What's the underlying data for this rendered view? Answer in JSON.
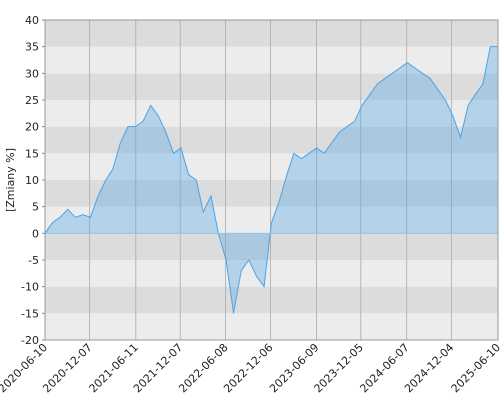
{
  "chart_data": {
    "type": "area",
    "y_label": "[Zmiany %]",
    "x": [
      "2020-06-10",
      "2020-07-10",
      "2020-08-10",
      "2020-09-10",
      "2020-10-10",
      "2020-11-10",
      "2020-12-10",
      "2021-01-10",
      "2021-02-10",
      "2021-03-10",
      "2021-04-10",
      "2021-05-10",
      "2021-06-10",
      "2021-07-10",
      "2021-08-10",
      "2021-09-10",
      "2021-10-10",
      "2021-11-10",
      "2021-12-10",
      "2022-01-10",
      "2022-02-10",
      "2022-03-10",
      "2022-04-10",
      "2022-05-10",
      "2022-06-10",
      "2022-07-10",
      "2022-08-10",
      "2022-09-10",
      "2022-10-10",
      "2022-11-10",
      "2022-12-10",
      "2023-01-10",
      "2023-02-10",
      "2023-03-10",
      "2023-04-10",
      "2023-05-10",
      "2023-06-10",
      "2023-07-10",
      "2023-08-10",
      "2023-09-10",
      "2023-10-10",
      "2023-11-10",
      "2023-12-10",
      "2024-01-10",
      "2024-02-10",
      "2024-03-10",
      "2024-04-10",
      "2024-05-10",
      "2024-06-10",
      "2024-07-10",
      "2024-08-10",
      "2024-09-10",
      "2024-10-10",
      "2024-11-10",
      "2024-12-10",
      "2025-01-10",
      "2025-02-10",
      "2025-03-10",
      "2025-04-10",
      "2025-05-10",
      "2025-06-10"
    ],
    "series": [
      {
        "name": "Zmiany",
        "color": "#4da3e6",
        "values": [
          0,
          2,
          3,
          4.5,
          3,
          3.5,
          3,
          7,
          10,
          12,
          17,
          20,
          20,
          21,
          24,
          22,
          19,
          15,
          16,
          11,
          10,
          4,
          7,
          0,
          -5,
          -15,
          -7,
          -5,
          -8,
          -10,
          2,
          6,
          11,
          15,
          14,
          15,
          16,
          15,
          17,
          19,
          20,
          21,
          24,
          26,
          28,
          29,
          30,
          31,
          32,
          31,
          30,
          29,
          27,
          25,
          22,
          18,
          24,
          26,
          28,
          35,
          35
        ]
      }
    ],
    "xlim": [
      "2020-06-10",
      "2025-06-10"
    ],
    "xticks": [
      "2020-06-10",
      "2020-12-07",
      "2021-06-11",
      "2021-12-07",
      "2022-06-08",
      "2022-12-06",
      "2023-06-09",
      "2023-12-05",
      "2024-06-07",
      "2024-12-04",
      "2025-06-10"
    ],
    "ylim": [
      -20,
      40
    ],
    "yticks": [
      -20,
      -15,
      -10,
      -5,
      0,
      5,
      10,
      15,
      20,
      25,
      30,
      35,
      40
    ],
    "banded": true,
    "grid": true
  }
}
